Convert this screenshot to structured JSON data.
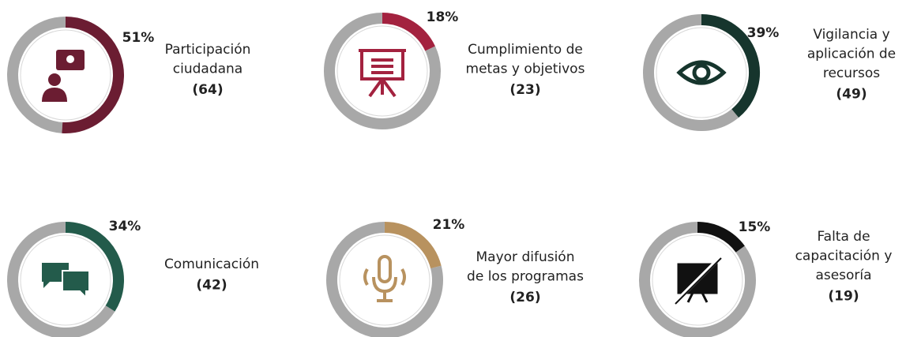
{
  "chart_data": [
    {
      "type": "donut",
      "label_lines": [
        "Participación",
        "ciudadana"
      ],
      "count_label": "(64)",
      "values": [
        51
      ],
      "value_labels": [
        "51%"
      ],
      "color": "#6b1d32",
      "track_color": "#a8a8a8"
    },
    {
      "type": "donut",
      "label_lines": [
        "Cumplimiento de",
        "metas y objetivos"
      ],
      "count_label": "(23)",
      "values": [
        18
      ],
      "value_labels": [
        "18%"
      ],
      "color": "#a3223f",
      "track_color": "#a8a8a8"
    },
    {
      "type": "donut",
      "label_lines": [
        "Vigilancia y",
        "aplicación de",
        "recursos"
      ],
      "count_label": "(49)",
      "values": [
        39
      ],
      "value_labels": [
        "39%"
      ],
      "color": "#16352d",
      "track_color": "#a8a8a8"
    },
    {
      "type": "donut",
      "label_lines": [
        "Comunicación"
      ],
      "count_label": "(42)",
      "values": [
        34
      ],
      "value_labels": [
        "34%"
      ],
      "color": "#235b4b",
      "track_color": "#a8a8a8"
    },
    {
      "type": "donut",
      "label_lines": [
        "Mayor difusión",
        "de los programas"
      ],
      "count_label": "(26)",
      "values": [
        21
      ],
      "value_labels": [
        "21%"
      ],
      "color": "#b8925f",
      "track_color": "#a8a8a8"
    },
    {
      "type": "donut",
      "label_lines": [
        "Falta de",
        "capacitación y",
        "asesoría"
      ],
      "count_label": "(19)",
      "values": [
        15
      ],
      "value_labels": [
        "15%"
      ],
      "color": "#111111",
      "track_color": "#a8a8a8"
    }
  ]
}
